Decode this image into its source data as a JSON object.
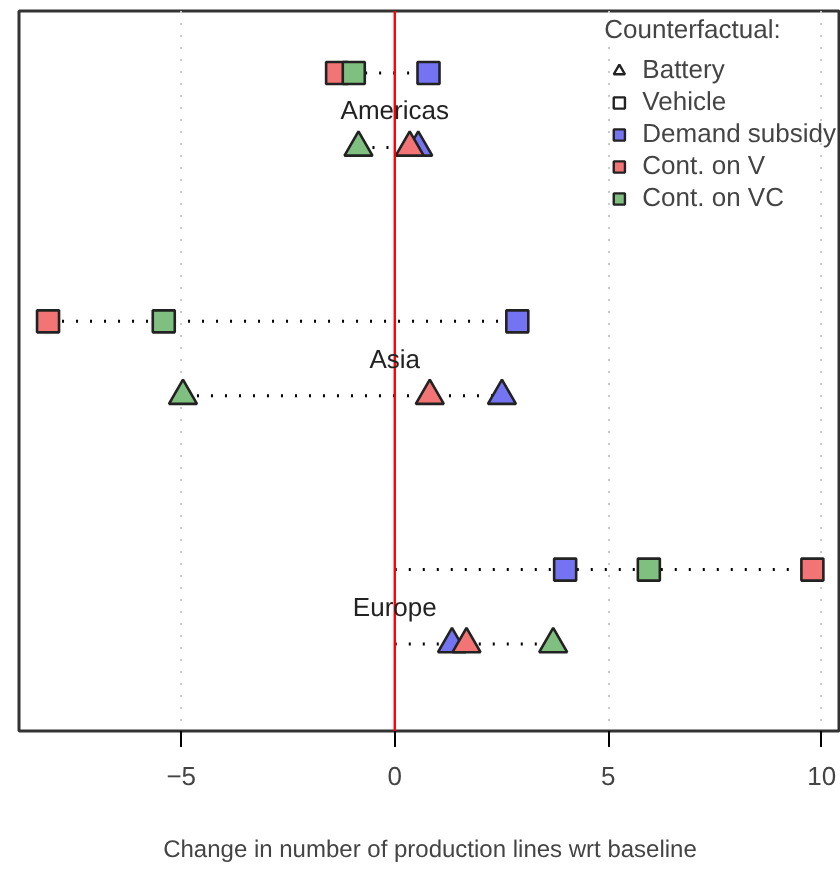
{
  "chart_data": {
    "type": "scatter",
    "orientation": "horizontal",
    "xlabel": "Change in number of production lines wrt baseline",
    "legend_title": "Counterfactual:",
    "legend": "top right",
    "grid": "x",
    "tick_labels": "x",
    "line_style": "dotted",
    "categories": [
      null,
      null,
      null,
      null,
      null,
      null,
      null,
      null,
      null,
      null,
      null,
      null,
      null,
      null,
      null,
      null,
      null,
      null,
      null,
      null,
      null,
      null,
      null,
      null,
      null,
      null,
      null,
      null,
      null
    ],
    "marker": [
      null,
      null,
      "square",
      null,
      null,
      "triangle",
      null,
      null,
      null,
      null,
      null,
      null,
      "square",
      null,
      null,
      "triangle",
      null,
      null,
      null,
      null,
      null,
      null,
      "square",
      null,
      null,
      "triangle",
      null,
      null,
      null
    ],
    "annotations": [
      "Americas",
      "Asia",
      "Europe"
    ],
    "xlim": [
      -8.8,
      10.45
    ],
    "xticks": [
      {
        "value": -5,
        "label": "−5"
      },
      0,
      5,
      10
    ],
    "ref_lines": [
      {
        "axis": "x",
        "value": 0,
        "color": "#ff0000"
      }
    ],
    "series": [
      {
        "name": "Battery",
        "marker": "triangle",
        "color": "#ffffff",
        "values": [
          null,
          null,
          null,
          null,
          null,
          null,
          null,
          null,
          null,
          null,
          null,
          null,
          null,
          null,
          null,
          null,
          null,
          null,
          null,
          null,
          null,
          null,
          null,
          null,
          null,
          null,
          null,
          null,
          null
        ]
      },
      {
        "name": "Vehicle",
        "marker": "square",
        "color": "#ffffff",
        "values": [
          null,
          null,
          null,
          null,
          null,
          null,
          null,
          null,
          null,
          null,
          null,
          null,
          null,
          null,
          null,
          null,
          null,
          null,
          null,
          null,
          null,
          null,
          null,
          null,
          null,
          null,
          null,
          null,
          null
        ]
      },
      {
        "name": "Demand subsidy",
        "color": "#7474f2",
        "values": [
          null,
          null,
          0.79,
          null,
          null,
          0.55,
          null,
          null,
          null,
          null,
          null,
          null,
          2.87,
          null,
          null,
          2.51,
          null,
          null,
          null,
          null,
          null,
          null,
          3.99,
          null,
          null,
          1.34,
          null,
          null,
          null
        ]
      },
      {
        "name": "Cont. on V",
        "color": "#f27474",
        "values": [
          null,
          null,
          -1.35,
          null,
          null,
          0.35,
          null,
          null,
          null,
          null,
          null,
          null,
          -8.12,
          null,
          null,
          0.82,
          null,
          null,
          null,
          null,
          null,
          null,
          9.78,
          null,
          null,
          1.68,
          null,
          null,
          null
        ]
      },
      {
        "name": "Cont. on VC",
        "color": "#7fbf7f",
        "values": [
          null,
          null,
          -0.96,
          null,
          null,
          -0.85,
          null,
          null,
          null,
          null,
          null,
          null,
          -5.41,
          null,
          null,
          -4.96,
          null,
          null,
          null,
          null,
          null,
          null,
          5.95,
          null,
          null,
          3.71,
          null,
          null,
          null
        ]
      }
    ]
  }
}
